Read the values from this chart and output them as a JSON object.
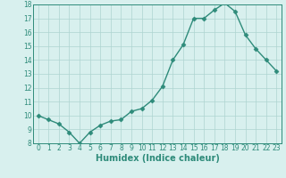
{
  "x": [
    0,
    1,
    2,
    3,
    4,
    5,
    6,
    7,
    8,
    9,
    10,
    11,
    12,
    13,
    14,
    15,
    16,
    17,
    18,
    19,
    20,
    21,
    22,
    23
  ],
  "y": [
    10.0,
    9.7,
    9.4,
    8.8,
    8.0,
    8.8,
    9.3,
    9.6,
    9.7,
    10.3,
    10.5,
    11.1,
    12.1,
    14.0,
    15.1,
    17.0,
    17.0,
    17.6,
    18.1,
    17.5,
    15.8,
    14.8,
    14.0,
    13.2
  ],
  "xlabel": "Humidex (Indice chaleur)",
  "ylim": [
    8,
    18
  ],
  "xlim": [
    -0.5,
    23.5
  ],
  "yticks": [
    8,
    9,
    10,
    11,
    12,
    13,
    14,
    15,
    16,
    17,
    18
  ],
  "xticks": [
    0,
    1,
    2,
    3,
    4,
    5,
    6,
    7,
    8,
    9,
    10,
    11,
    12,
    13,
    14,
    15,
    16,
    17,
    18,
    19,
    20,
    21,
    22,
    23
  ],
  "line_color": "#2e8b7a",
  "marker_color": "#2e8b7a",
  "bg_color": "#d8f0ee",
  "grid_color": "#aed4d0",
  "xlabel_fontsize": 7.0,
  "tick_fontsize": 5.5
}
